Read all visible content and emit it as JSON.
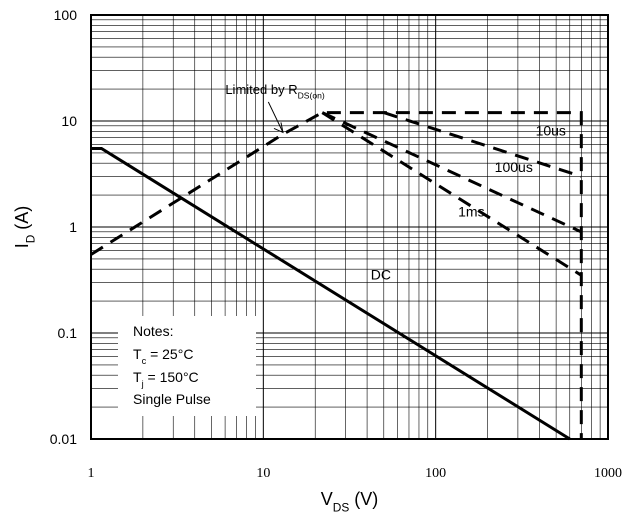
{
  "chart_data": {
    "type": "line",
    "x_scale": "log",
    "y_scale": "log",
    "xlim": [
      1,
      1000
    ],
    "ylim": [
      0.01,
      100
    ],
    "grid": true,
    "x_ticks": [
      {
        "value": 1,
        "label": "1"
      },
      {
        "value": 10,
        "label": "10"
      },
      {
        "value": 100,
        "label": "100"
      },
      {
        "value": 1000,
        "label": "1000"
      }
    ],
    "y_ticks": [
      {
        "value": 100,
        "label": "100"
      },
      {
        "value": 10,
        "label": "10"
      },
      {
        "value": 1,
        "label": "1"
      },
      {
        "value": 0.1,
        "label": "0.1"
      },
      {
        "value": 0.01,
        "label": "0.01"
      }
    ],
    "ylabel": {
      "main": "I",
      "sub": "D",
      "rest": " (A)"
    },
    "xlabel": {
      "main": "V",
      "sub": "DS",
      "rest": " (V)"
    },
    "series": [
      {
        "name": "DC",
        "style": "solid",
        "points": [
          [
            1,
            5.5
          ],
          [
            1.15,
            5.5
          ],
          [
            600,
            0.01
          ]
        ]
      },
      {
        "name": "",
        "style": "dashed",
        "points": [
          [
            1,
            0.55
          ],
          [
            13,
            7.5
          ],
          [
            22,
            12
          ],
          [
            700,
            12
          ],
          [
            700,
            0.01
          ]
        ]
      },
      {
        "name": "10us",
        "style": "dashed",
        "points": [
          [
            50,
            12
          ],
          [
            700,
            3
          ]
        ]
      },
      {
        "name": "100us",
        "style": "dashed",
        "points": [
          [
            22,
            12
          ],
          [
            700,
            0.9
          ]
        ]
      },
      {
        "name": "1ms",
        "style": "dashed",
        "points": [
          [
            22,
            12
          ],
          [
            700,
            0.35
          ]
        ]
      }
    ],
    "annotations": [
      {
        "id": "rds",
        "text": "Limited by R",
        "sub": "DS(on)",
        "x": 10,
        "y": 18,
        "arrow_to": [
          13,
          7.8
        ]
      },
      {
        "id": "10us",
        "text": "10us",
        "x": 380,
        "y": 7.3
      },
      {
        "id": "100us",
        "text": "100us",
        "x": 220,
        "y": 3.3
      },
      {
        "id": "1ms",
        "text": "1ms",
        "x": 135,
        "y": 1.25
      },
      {
        "id": "dc",
        "text": "DC",
        "x": 42,
        "y": 0.32
      }
    ],
    "notes": [
      {
        "text": "Notes:"
      },
      {
        "main": "T",
        "sub": "c",
        "rest": " = 25°C"
      },
      {
        "main": "T",
        "sub": "j",
        "rest": " = 150°C"
      },
      {
        "text": "Single Pulse"
      }
    ]
  }
}
